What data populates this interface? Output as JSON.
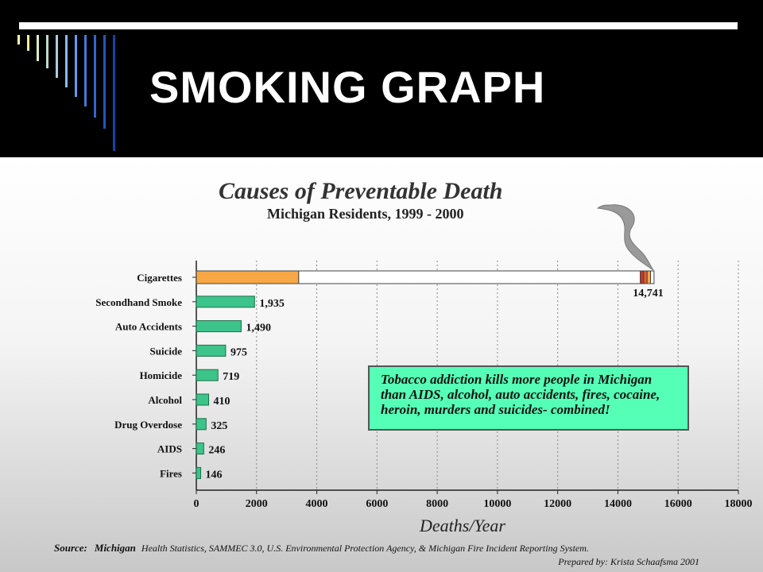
{
  "slide": {
    "title": "SMOKING GRAPH"
  },
  "chart_data": {
    "type": "bar",
    "orientation": "horizontal",
    "title": "Causes of Preventable Death",
    "subtitle": "Michigan Residents, 1999 - 2000",
    "xlabel": "Deaths/Year",
    "ylabel": "",
    "xlim": [
      0,
      18000
    ],
    "xticks": [
      "0",
      "2000",
      "4000",
      "6000",
      "8000",
      "10000",
      "12000",
      "14000",
      "16000",
      "18000"
    ],
    "grid": "vertical dotted",
    "categories": [
      "Cigarettes",
      "Secondhand Smoke",
      "Auto Accidents",
      "Suicide",
      "Homicide",
      "Alcohol",
      "Drug Overdose",
      "AIDS",
      "Fires"
    ],
    "values": [
      14741,
      1935,
      1490,
      975,
      719,
      410,
      325,
      246,
      146
    ],
    "value_labels": [
      "14,741",
      "1,935",
      "1,490",
      "975",
      "719",
      "410",
      "325",
      "246",
      "146"
    ],
    "cigarette_orange_segment": 3400,
    "colors": {
      "bar": "#3cc48a",
      "cigarette_filter": "#f7a845",
      "cigarette_body": "#ffffff",
      "ember": "#c0392b",
      "smoke": "#9a9a9a"
    }
  },
  "note": {
    "text": "Tobacco addiction kills more people in Michigan than AIDS, alcohol, auto accidents, fires, cocaine, heroin, murders and suicides- combined!",
    "color": "#55ffb6"
  },
  "source": {
    "label": "Source:",
    "state": "Michigan",
    "text": "Health Statistics, SAMMEC 3.0, U.S. Environmental Protection Agency, & Michigan Fire Incident Reporting System.",
    "prepared": "Prepared by: Krista Schaafsma 2001"
  },
  "decoration": {
    "line_colors": [
      "#ffffaa",
      "#eeee99",
      "#ddeebb",
      "#bbddcc",
      "#aaccdd",
      "#88bbee",
      "#6699ee",
      "#4477dd",
      "#3366cc",
      "#2255bb",
      "#1144aa"
    ]
  }
}
